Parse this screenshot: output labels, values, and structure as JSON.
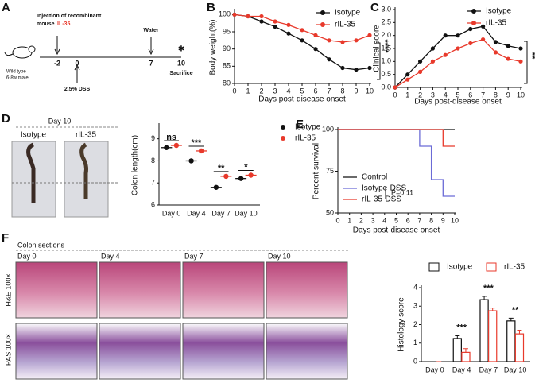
{
  "panel_labels": [
    "A",
    "B",
    "C",
    "D",
    "E",
    "F"
  ],
  "panel_a": {
    "mouse": [
      "Wild type",
      "6-8w male"
    ],
    "injection": [
      "Injection of recombinant",
      "mouse",
      "IL-35"
    ],
    "water": "Water",
    "dss": "2.5% DSS",
    "sacrifice": "Sacrifice",
    "days": [
      "-2",
      "0",
      "7",
      "10"
    ]
  },
  "panel_d_images": {
    "title": "Day 10",
    "labels": [
      "Isotype",
      "rIL-35"
    ]
  },
  "panel_f_images": {
    "title": "Colon sections",
    "days": [
      "Day 0",
      "Day 4",
      "Day 7",
      "Day 10"
    ],
    "rows": [
      "H&E 100×",
      "PAS 100×"
    ]
  },
  "chart_data": [
    {
      "type": "line",
      "ylabel": "Body weight(%)",
      "xlabel": "Days post-disease onset",
      "x": [
        0,
        1,
        2,
        3,
        4,
        5,
        6,
        7,
        8,
        9,
        10
      ],
      "series": [
        {
          "name": "Isotype",
          "color": "#111111",
          "values": [
            100,
            99.5,
            98,
            96.5,
            94.5,
            92.5,
            90,
            87,
            84.5,
            84,
            84.5
          ]
        },
        {
          "name": "rIL-35",
          "color": "#e8392b",
          "values": [
            100,
            99.5,
            99.5,
            98,
            97,
            95.5,
            94,
            92.5,
            92,
            92.5,
            94
          ]
        }
      ],
      "xlim": [
        0,
        10
      ],
      "ylim": [
        80,
        101
      ],
      "xticks": [
        0,
        1,
        2,
        3,
        4,
        5,
        6,
        7,
        8,
        9,
        10
      ],
      "yticks": [
        80,
        85,
        90,
        95,
        100
      ],
      "annotation": "****",
      "legend": "top-right"
    },
    {
      "type": "line",
      "ylabel": "Clinical score",
      "xlabel": "Days post-disease onset",
      "x": [
        0,
        1,
        2,
        3,
        4,
        5,
        6,
        7,
        8,
        9,
        10
      ],
      "series": [
        {
          "name": "Isotype",
          "color": "#111111",
          "values": [
            0,
            0.5,
            1.0,
            1.5,
            2.0,
            2.0,
            2.25,
            2.35,
            1.75,
            1.6,
            1.5
          ]
        },
        {
          "name": "rIL-35",
          "color": "#e8392b",
          "values": [
            0,
            0.3,
            0.6,
            1.0,
            1.25,
            1.5,
            1.7,
            1.85,
            1.35,
            1.1,
            1.0
          ]
        }
      ],
      "xlim": [
        0,
        10
      ],
      "ylim": [
        0,
        3
      ],
      "xticks": [
        0,
        1,
        2,
        3,
        4,
        5,
        6,
        7,
        8,
        9,
        10
      ],
      "yticks": [
        {
          "value": 0,
          "label": "0.0"
        },
        {
          "value": 0.5,
          "label": "0.5"
        },
        {
          "value": 1,
          "label": "1.0"
        },
        {
          "value": 1.5,
          "label": "1.5"
        },
        {
          "value": 2,
          "label": "2.0"
        },
        {
          "value": 2.5,
          "label": "2.5"
        },
        {
          "value": 3,
          "label": "3.0"
        }
      ],
      "annotation": "**",
      "legend": "top-right"
    },
    {
      "type": "dot",
      "ylabel": "Colon length(cm)",
      "categories": [
        "Day 0",
        "Day 4",
        "Day 7",
        "Day 10"
      ],
      "series": [
        {
          "name": "Isotype",
          "color": "#111111",
          "values": [
            8.6,
            8.0,
            6.8,
            7.2
          ]
        },
        {
          "name": "rIL-35",
          "color": "#e8392b",
          "values": [
            8.7,
            8.45,
            7.3,
            7.35
          ]
        }
      ],
      "ylim": [
        6,
        9.6
      ],
      "yticks": [
        6,
        7,
        8,
        9
      ],
      "significance": [
        "ns",
        "***",
        "**",
        "*"
      ],
      "legend": "outside-right"
    },
    {
      "type": "step",
      "ylabel": "Percent survival",
      "xlabel": "Days post-disease onset",
      "x": [
        0,
        1,
        2,
        3,
        4,
        5,
        6,
        7,
        8,
        9,
        10
      ],
      "series": [
        {
          "name": "Control",
          "color": "#111111",
          "values": [
            100,
            100,
            100,
            100,
            100,
            100,
            100,
            100,
            100,
            100,
            100
          ]
        },
        {
          "name": "Isotype-DSS",
          "color": "#6b6bd6",
          "values": [
            100,
            100,
            100,
            100,
            100,
            100,
            100,
            90,
            70,
            60,
            60
          ]
        },
        {
          "name": "rIL-35-DSS",
          "color": "#e8392b",
          "values": [
            100,
            100,
            100,
            100,
            100,
            100,
            100,
            100,
            100,
            90,
            90
          ]
        }
      ],
      "xlim": [
        0,
        10
      ],
      "ylim": [
        50,
        100
      ],
      "xticks": [
        0,
        1,
        2,
        3,
        4,
        5,
        6,
        7,
        8,
        9,
        10
      ],
      "yticks": [
        50,
        75,
        100
      ],
      "annotation": "P=0.11",
      "legend": "bottom-left"
    },
    {
      "type": "bar",
      "ylabel": "Histology score",
      "categories": [
        "Day 0",
        "Day 4",
        "Day 7",
        "Day 10"
      ],
      "series": [
        {
          "name": "Isotype",
          "color": "#111111",
          "values": [
            0,
            1.25,
            3.35,
            2.2
          ],
          "errors": [
            0,
            0.15,
            0.18,
            0.15
          ]
        },
        {
          "name": "rIL-35",
          "color": "#e8392b",
          "values": [
            0,
            0.5,
            2.75,
            1.5
          ],
          "errors": [
            0,
            0.2,
            0.15,
            0.2
          ]
        }
      ],
      "ylim": [
        0,
        4
      ],
      "yticks": [
        0,
        1,
        2,
        3,
        4
      ],
      "significance": [
        null,
        "***",
        "***",
        "**"
      ],
      "legend": "top"
    }
  ]
}
